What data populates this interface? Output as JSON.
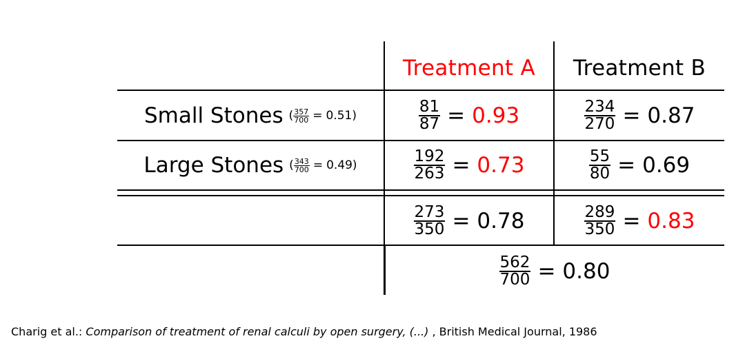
{
  "table": {
    "headers": {
      "treatment_a": "Treatment A",
      "treatment_b": "Treatment B"
    },
    "rows": [
      {
        "label": "Small Stones",
        "share_num": "357",
        "share_den": "700",
        "share_val": "0.51",
        "a_num": "81",
        "a_den": "87",
        "a_val": "0.93",
        "b_num": "234",
        "b_den": "270",
        "b_val": "0.87"
      },
      {
        "label": "Large Stones",
        "share_num": "343",
        "share_den": "700",
        "share_val": "0.49",
        "a_num": "192",
        "a_den": "263",
        "a_val": "0.73",
        "b_num": "55",
        "b_den": "80",
        "b_val": "0.69"
      }
    ],
    "totals": {
      "a_num": "273",
      "a_den": "350",
      "a_val": "0.78",
      "b_num": "289",
      "b_den": "350",
      "b_val": "0.83"
    },
    "overall": {
      "num": "562",
      "den": "700",
      "val": "0.80"
    },
    "highlight_color": "#ff0000"
  },
  "citation": {
    "prefix": "Charig et al.:",
    "title": "Comparison of treatment of renal calculi by open surgery, (...)",
    "suffix": ", British Medical Journal, 1986"
  }
}
